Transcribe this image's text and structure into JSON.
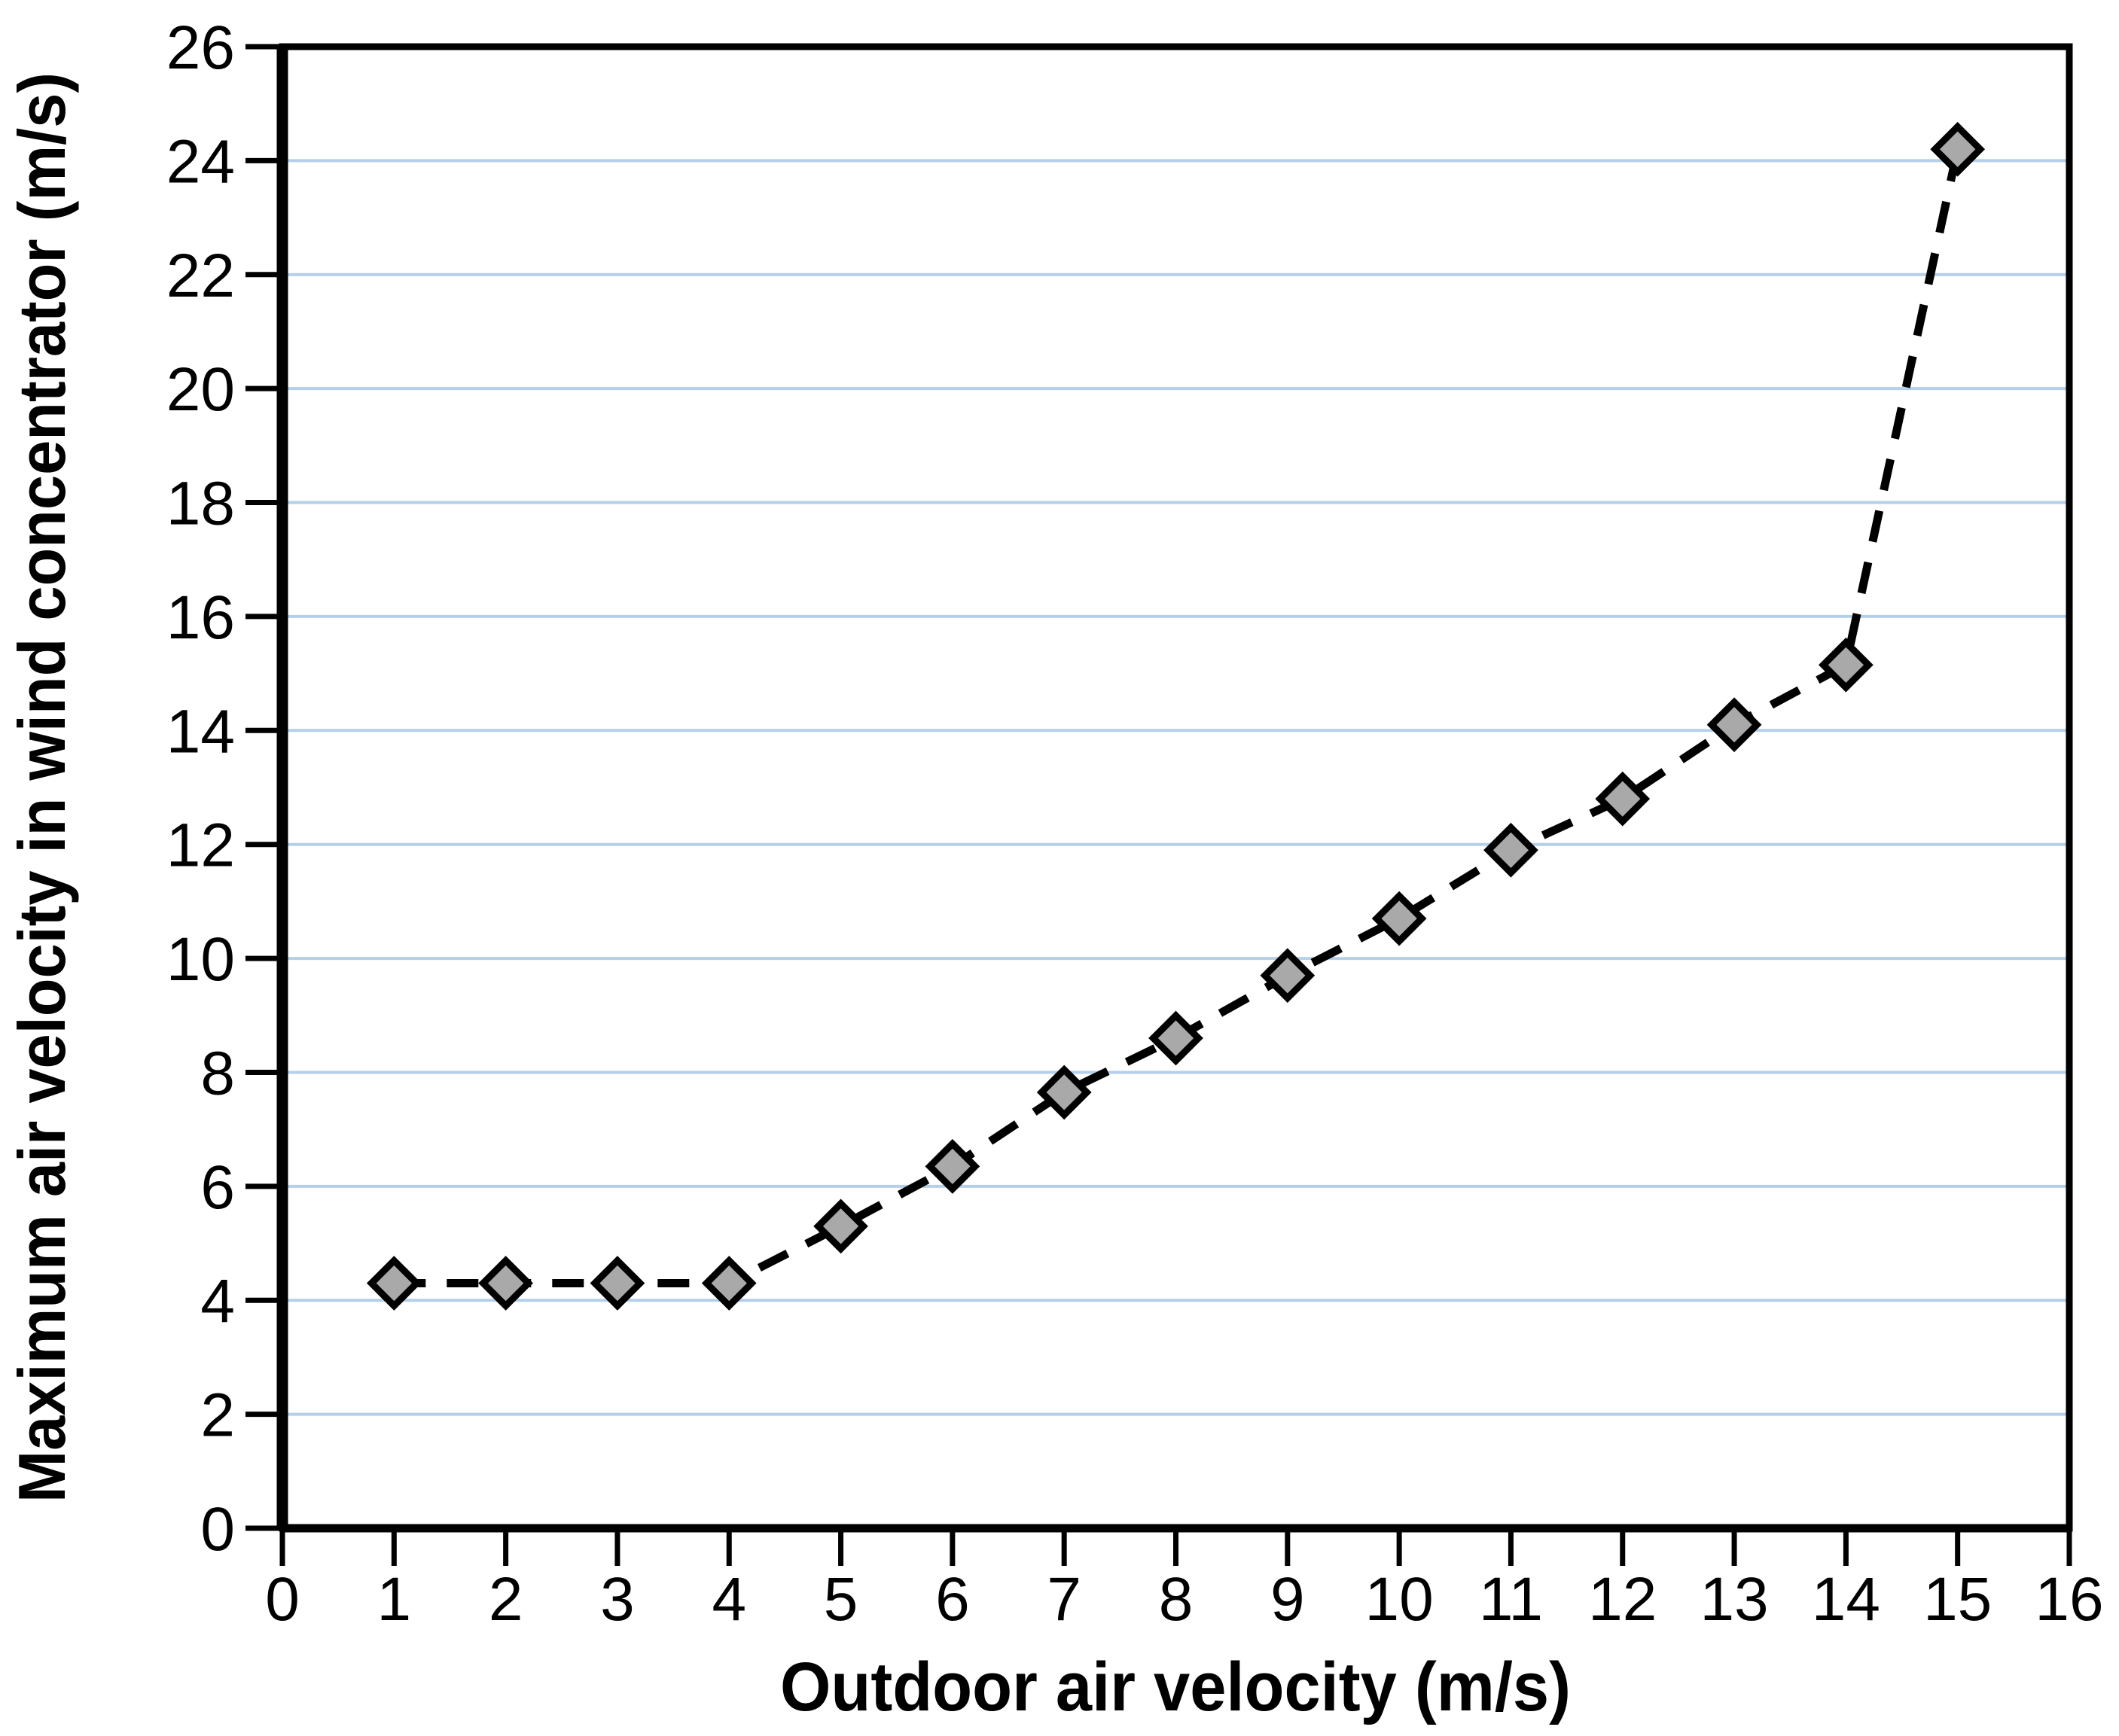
{
  "chart_data": {
    "type": "line",
    "title": "",
    "xlabel": "Outdoor air velocity (m/s)",
    "ylabel": "Maximum air velocity in wind concentrator (m/s)",
    "x": [
      1,
      2,
      3,
      4,
      5,
      6,
      7,
      8,
      9,
      10,
      11,
      12,
      13,
      14,
      15
    ],
    "y": [
      4.3,
      4.3,
      4.3,
      4.3,
      5.3,
      6.35,
      7.65,
      8.6,
      9.7,
      10.7,
      11.9,
      12.8,
      14.1,
      15.15,
      24.2
    ],
    "xlim": [
      0,
      16
    ],
    "ylim": [
      0,
      26
    ],
    "xticks": [
      0,
      1,
      2,
      3,
      4,
      5,
      6,
      7,
      8,
      9,
      10,
      11,
      12,
      13,
      14,
      15,
      16
    ],
    "yticks": [
      0,
      2,
      4,
      6,
      8,
      10,
      12,
      14,
      16,
      18,
      20,
      22,
      24,
      26
    ],
    "grid": "horizontal",
    "legend_position": "none",
    "line_style": "dashed",
    "marker": "diamond",
    "colors": {
      "line": "#000000",
      "marker_fill": "#a9a9a9",
      "marker_stroke": "#000000",
      "gridline": "#b5cfe9",
      "axis": "#000000",
      "background": "#ffffff",
      "text": "#000000"
    }
  }
}
